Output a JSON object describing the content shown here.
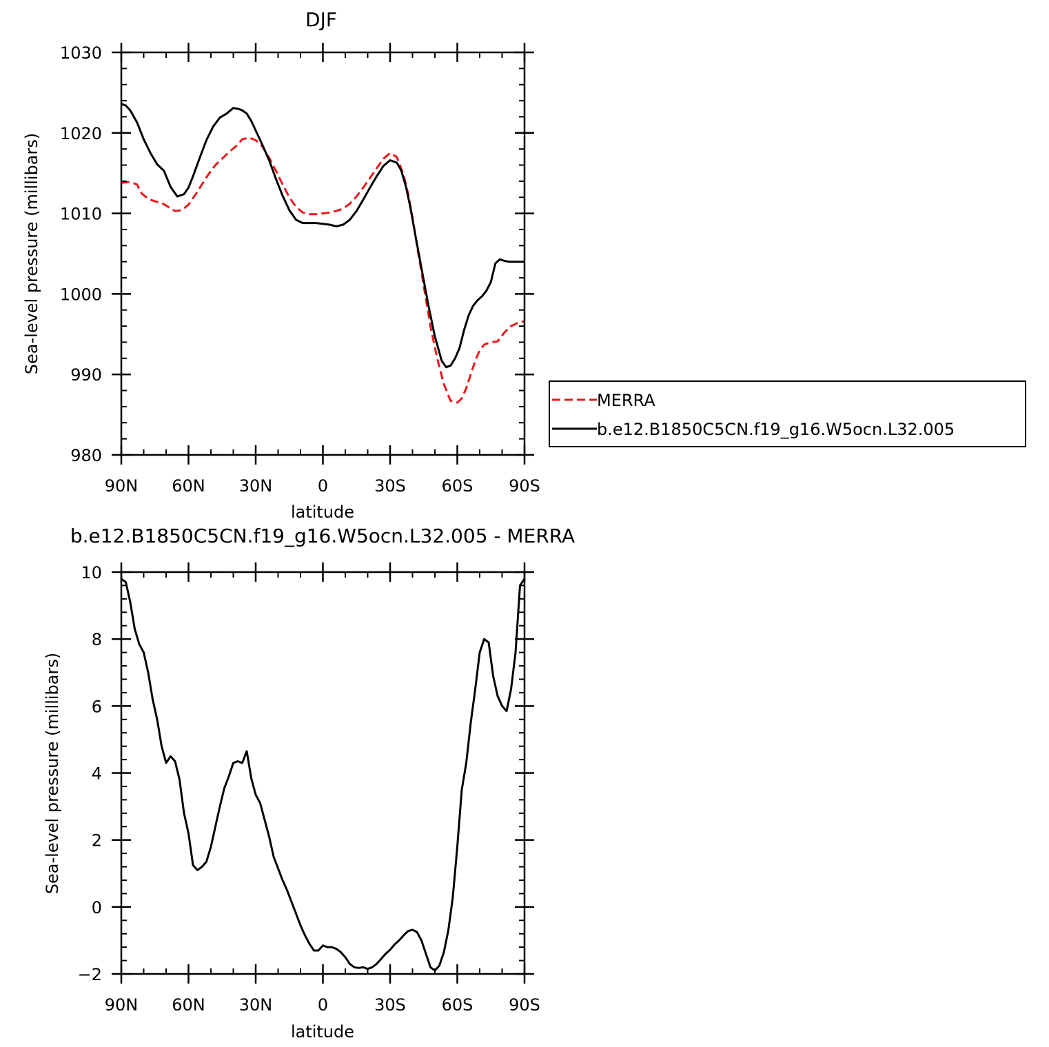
{
  "chart_data": [
    {
      "type": "line",
      "title": "DJF",
      "xlabel": "latitude",
      "ylabel": "Sea-level pressure (millibars)",
      "ylim": [
        980,
        1030
      ],
      "xlim": [
        -90,
        90
      ],
      "y_ticks": [
        980,
        990,
        1000,
        1010,
        1020,
        1030
      ],
      "x_ticks": [
        {
          "value": -90,
          "label": "90N"
        },
        {
          "value": -60,
          "label": "60N"
        },
        {
          "value": -30,
          "label": "30N"
        },
        {
          "value": 0,
          "label": "0"
        },
        {
          "value": 30,
          "label": "30S"
        },
        {
          "value": 60,
          "label": "60S"
        },
        {
          "value": 90,
          "label": "90S"
        }
      ],
      "legend": "right",
      "series": [
        {
          "name": "MERRA",
          "color": "#e8191c",
          "style": "dashed",
          "x": [
            -90,
            -86,
            -83,
            -81,
            -78,
            -75,
            -72,
            -69,
            -66,
            -63,
            -60,
            -57,
            -54,
            -51,
            -48,
            -45,
            -42,
            -39,
            -36,
            -33,
            -30,
            -27,
            -24,
            -21,
            -18,
            -15,
            -12,
            -9,
            -6,
            -3,
            0,
            3,
            6,
            9,
            12,
            15,
            18,
            21,
            24,
            27,
            30,
            33,
            36,
            38,
            40,
            42,
            45,
            48,
            51,
            54,
            57,
            60,
            62,
            64,
            66,
            68,
            70,
            72,
            75,
            78,
            81,
            84,
            87,
            90
          ],
          "values": [
            1013.8,
            1013.9,
            1013.6,
            1012.5,
            1011.8,
            1011.5,
            1011.3,
            1010.8,
            1010.3,
            1010.4,
            1011.1,
            1012.3,
            1013.6,
            1014.9,
            1016.0,
            1016.8,
            1017.6,
            1018.3,
            1019.2,
            1019.4,
            1019.1,
            1018.3,
            1016.9,
            1015.3,
            1013.6,
            1012.0,
            1010.8,
            1010.1,
            1009.9,
            1009.9,
            1010.0,
            1010.1,
            1010.3,
            1010.6,
            1011.2,
            1012.1,
            1013.2,
            1014.4,
            1015.6,
            1016.8,
            1017.5,
            1017.0,
            1014.8,
            1012.5,
            1009.5,
            1006.0,
            1001.0,
            996.0,
            992.0,
            988.8,
            986.7,
            986.5,
            987.0,
            988.3,
            990.0,
            991.7,
            993.0,
            993.7,
            994.0,
            994.1,
            995.2,
            996.0,
            996.4,
            996.6
          ]
        },
        {
          "name": "b.e12.B1850C5CN.f19_g16.W5ocn.L32.005",
          "color": "#000000",
          "style": "solid",
          "x": [
            -90,
            -88,
            -86,
            -83,
            -80,
            -77,
            -74,
            -71,
            -68,
            -65,
            -62,
            -60,
            -58,
            -55,
            -52,
            -49,
            -46,
            -43,
            -40,
            -38,
            -36,
            -34,
            -32,
            -30,
            -27,
            -24,
            -21,
            -18,
            -15,
            -12,
            -9,
            -6,
            -3,
            0,
            3,
            6,
            9,
            12,
            15,
            18,
            21,
            24,
            27,
            30,
            33,
            35,
            37,
            39,
            41,
            44,
            47,
            50,
            53,
            55,
            57,
            59,
            61,
            63,
            65,
            67,
            69,
            71,
            73,
            75,
            77,
            79,
            81,
            83,
            85,
            86,
            88,
            90
          ],
          "values": [
            1023.6,
            1023.4,
            1022.8,
            1021.3,
            1019.2,
            1017.5,
            1016.1,
            1015.3,
            1013.3,
            1012.1,
            1012.4,
            1013.2,
            1014.6,
            1016.9,
            1019.1,
            1020.8,
            1021.9,
            1022.4,
            1023.1,
            1023.0,
            1022.8,
            1022.4,
            1021.5,
            1020.3,
            1018.5,
            1016.6,
            1014.3,
            1012.2,
            1010.4,
            1009.2,
            1008.8,
            1008.8,
            1008.8,
            1008.7,
            1008.6,
            1008.4,
            1008.6,
            1009.2,
            1010.3,
            1011.7,
            1013.2,
            1014.6,
            1015.9,
            1016.6,
            1016.3,
            1015.3,
            1013.4,
            1010.8,
            1007.7,
            1003.2,
            998.7,
            994.7,
            991.7,
            990.9,
            991.1,
            992.0,
            993.3,
            995.5,
            997.3,
            998.5,
            999.2,
            999.7,
            1000.4,
            1001.5,
            1003.8,
            1004.3,
            1004.1,
            1004.0,
            1004.0,
            1004.0,
            1004.0,
            1004.0
          ]
        }
      ]
    },
    {
      "type": "line",
      "title": "b.e12.B1850C5CN.f19_g16.W5ocn.L32.005 - MERRA",
      "xlabel": "latitude",
      "ylabel": "Sea-level pressure (millibars)",
      "ylim": [
        -2,
        10
      ],
      "xlim": [
        -90,
        90
      ],
      "y_ticks": [
        -2,
        0,
        2,
        4,
        6,
        8,
        10
      ],
      "x_ticks": [
        {
          "value": -90,
          "label": "90N"
        },
        {
          "value": -60,
          "label": "60N"
        },
        {
          "value": -30,
          "label": "30N"
        },
        {
          "value": 0,
          "label": "0"
        },
        {
          "value": 30,
          "label": "30S"
        },
        {
          "value": 60,
          "label": "60S"
        },
        {
          "value": 90,
          "label": "90S"
        }
      ],
      "series": [
        {
          "color": "#000000",
          "style": "solid",
          "x": [
            -90,
            -88,
            -86,
            -84,
            -82,
            -80,
            -78,
            -76,
            -74,
            -72,
            -70,
            -68,
            -66,
            -64,
            -62,
            -60,
            -58,
            -56,
            -54,
            -52,
            -50,
            -48,
            -46,
            -44,
            -42,
            -40,
            -38,
            -36,
            -34,
            -32,
            -30,
            -28,
            -26,
            -24,
            -22,
            -20,
            -18,
            -16,
            -14,
            -12,
            -10,
            -8,
            -6,
            -4,
            -2,
            0,
            2,
            4,
            6,
            8,
            10,
            12,
            14,
            16,
            18,
            20,
            22,
            24,
            26,
            28,
            30,
            32,
            34,
            36,
            38,
            40,
            42,
            44,
            46,
            48,
            50,
            52,
            54,
            56,
            58,
            60,
            62,
            64,
            66,
            68,
            70,
            72,
            74,
            76,
            78,
            80,
            82,
            84,
            86,
            88,
            90
          ],
          "values": [
            9.8,
            9.7,
            9.1,
            8.3,
            7.85,
            7.6,
            7.0,
            6.2,
            5.6,
            4.8,
            4.3,
            4.5,
            4.35,
            3.8,
            2.8,
            2.2,
            1.25,
            1.1,
            1.2,
            1.35,
            1.8,
            2.4,
            3.0,
            3.55,
            3.9,
            4.3,
            4.35,
            4.3,
            4.65,
            3.85,
            3.35,
            3.1,
            2.6,
            2.1,
            1.5,
            1.15,
            0.8,
            0.5,
            0.15,
            -0.2,
            -0.55,
            -0.85,
            -1.1,
            -1.3,
            -1.3,
            -1.15,
            -1.2,
            -1.2,
            -1.25,
            -1.35,
            -1.5,
            -1.7,
            -1.8,
            -1.82,
            -1.8,
            -1.85,
            -1.8,
            -1.7,
            -1.55,
            -1.4,
            -1.28,
            -1.12,
            -1.0,
            -0.85,
            -0.72,
            -0.68,
            -0.75,
            -1.0,
            -1.4,
            -1.8,
            -1.9,
            -1.75,
            -1.35,
            -0.7,
            0.3,
            1.8,
            3.5,
            4.3,
            5.5,
            6.5,
            7.6,
            8.0,
            7.9,
            6.9,
            6.3,
            6.0,
            5.85,
            6.5,
            7.6,
            9.6,
            9.8
          ]
        }
      ]
    }
  ]
}
